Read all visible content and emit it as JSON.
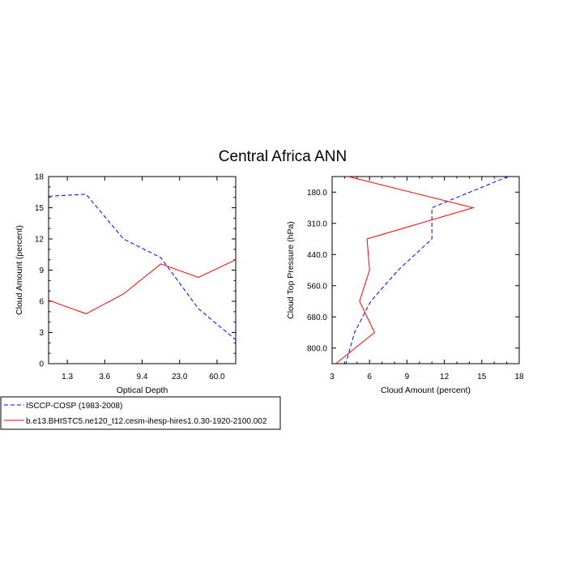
{
  "title": "Central Africa ANN",
  "legend": [
    {
      "label": "ISCCP-COSP (1983-2008)",
      "color": "#0000ff",
      "dash": true
    },
    {
      "label": "b.e13.BHISTC5.ne120_t12.cesm-ihesp-hires1.0.30-1920-2100.002",
      "color": "#ff0000",
      "dash": false
    }
  ],
  "chart_data": [
    {
      "type": "line",
      "xlabel": "Optical Depth",
      "ylabel": "Cloud Amount (percent)",
      "ylim": [
        0,
        18
      ],
      "yticks": [
        "0",
        "3",
        "6",
        "9",
        "12",
        "15",
        "18"
      ],
      "xtick_labels": [
        "1.3",
        "3.6",
        "9.4",
        "23.0",
        "60.0"
      ],
      "x": [
        0,
        1,
        2,
        3,
        4,
        5
      ],
      "series": [
        {
          "name": "ISCCP-COSP (1983-2008)",
          "color": "#0000ff",
          "dash": true,
          "values": [
            16.1,
            16.3,
            12.0,
            10.2,
            5.3,
            2.3
          ]
        },
        {
          "name": "b.e13.BHISTC5.ne120_t12.cesm-ihesp-hires1.0.30-1920-2100.002",
          "color": "#ff0000",
          "dash": false,
          "values": [
            6.1,
            4.8,
            6.7,
            9.6,
            8.3,
            10.0
          ]
        }
      ]
    },
    {
      "type": "line",
      "xlabel": "Cloud Amount (percent)",
      "ylabel": "Cloud Top Pressure (hPa)",
      "xlim": [
        3,
        18
      ],
      "xticks": [
        "3",
        "6",
        "9",
        "12",
        "15",
        "18"
      ],
      "ytick_labels": [
        "180.0",
        "310.0",
        "440.0",
        "560.0",
        "680.0",
        "800.0"
      ],
      "y": [
        0,
        1,
        2,
        3,
        4,
        5,
        6
      ],
      "series": [
        {
          "name": "ISCCP-COSP (1983-2008)",
          "color": "#0000ff",
          "dash": true,
          "values": [
            17.1,
            11.0,
            11.0,
            8.3,
            6.1,
            4.8,
            4.1
          ]
        },
        {
          "name": "b.e13.BHISTC5.ne120_t12.cesm-ihesp-hires1.0.30-1920-2100.002",
          "color": "#ff0000",
          "dash": false,
          "values": [
            4.3,
            14.3,
            5.8,
            6.0,
            5.2,
            6.4,
            3.3
          ]
        }
      ]
    }
  ]
}
